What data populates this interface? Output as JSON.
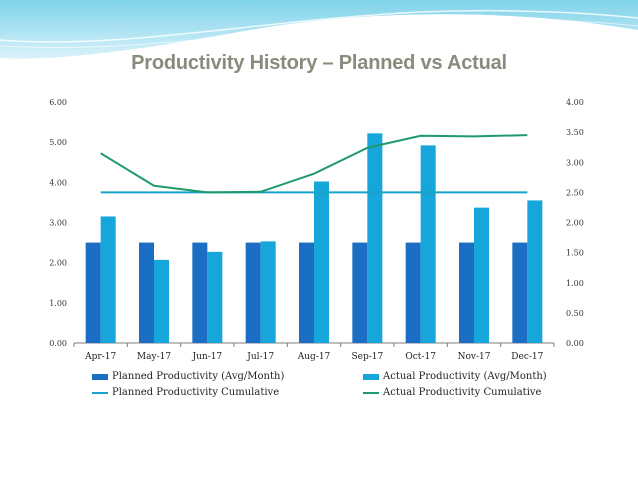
{
  "slide": {
    "title": "Productivity History – Planned vs Actual"
  },
  "colors": {
    "planned_bar": "#1a6fc4",
    "actual_bar": "#16a6d9",
    "planned_line": "#18a3c8",
    "actual_line": "#1f9a6c",
    "axis": "#7f7f7f"
  },
  "chart_data": {
    "type": "bar",
    "title": "Productivity History – Planned vs Actual",
    "categories": [
      "Apr-17",
      "May-17",
      "Jun-17",
      "Jul-17",
      "Aug-17",
      "Sep-17",
      "Oct-17",
      "Nov-17",
      "Dec-17"
    ],
    "series": [
      {
        "name": "Planned Productivity (Avg/Month)",
        "kind": "bar",
        "axis": "left",
        "values": [
          2.5,
          2.5,
          2.5,
          2.5,
          2.5,
          2.5,
          2.5,
          2.5,
          2.5
        ]
      },
      {
        "name": "Actual Productivity (Avg/Month)",
        "kind": "bar",
        "axis": "left",
        "values": [
          3.15,
          2.07,
          2.27,
          2.53,
          4.02,
          5.22,
          4.92,
          3.37,
          3.55
        ]
      },
      {
        "name": "Planned Productivity Cumulative",
        "kind": "line",
        "axis": "right",
        "values": [
          2.5,
          2.5,
          2.5,
          2.5,
          2.5,
          2.5,
          2.5,
          2.5,
          2.5
        ]
      },
      {
        "name": "Actual Productivity Cumulative",
        "kind": "line",
        "axis": "right",
        "values": [
          3.15,
          2.61,
          2.5,
          2.51,
          2.81,
          3.24,
          3.44,
          3.43,
          3.45
        ]
      }
    ],
    "y_left": {
      "min": 0,
      "max": 6,
      "step": 1,
      "tick_labels": [
        "0.00",
        "1.00",
        "2.00",
        "3.00",
        "4.00",
        "5.00",
        "6.00"
      ]
    },
    "y_right": {
      "min": 0,
      "max": 4,
      "step": 0.5,
      "tick_labels": [
        "0.00",
        "0.50",
        "1.00",
        "1.50",
        "2.00",
        "2.50",
        "3.00",
        "3.50",
        "4.00"
      ]
    },
    "legend": {
      "position": "bottom",
      "items": [
        "Planned Productivity (Avg/Month)",
        "Actual Productivity (Avg/Month)",
        "Planned Productivity Cumulative",
        "Actual Productivity Cumulative"
      ]
    }
  }
}
